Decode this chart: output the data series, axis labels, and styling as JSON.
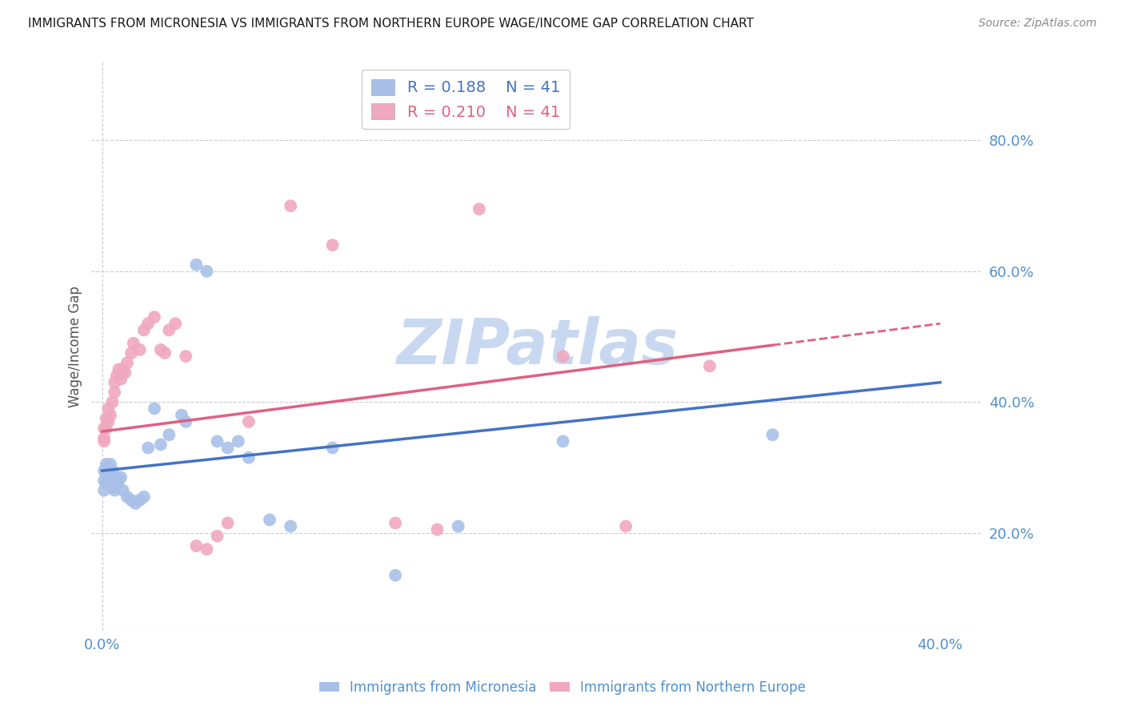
{
  "title": "IMMIGRANTS FROM MICRONESIA VS IMMIGRANTS FROM NORTHERN EUROPE WAGE/INCOME GAP CORRELATION CHART",
  "source": "Source: ZipAtlas.com",
  "ylabel": "Wage/Income Gap",
  "xlim": [
    -0.005,
    0.42
  ],
  "ylim": [
    0.05,
    0.92
  ],
  "yticks": [
    0.2,
    0.4,
    0.6,
    0.8
  ],
  "xticks": [
    0.0,
    0.1,
    0.2,
    0.3,
    0.4
  ],
  "xtick_labels": [
    "0.0%",
    "",
    "",
    "",
    "40.0%"
  ],
  "ytick_labels": [
    "20.0%",
    "40.0%",
    "60.0%",
    "80.0%"
  ],
  "series1_color": "#a8c0e8",
  "series2_color": "#f0a8c0",
  "line1_color": "#4472c4",
  "line2_color": "#e06080",
  "R1": 0.188,
  "N1": 41,
  "R2": 0.21,
  "N2": 41,
  "watermark": "ZIPatlas",
  "watermark_color": "#c8d8f0",
  "background_color": "#ffffff",
  "grid_color": "#cccccc",
  "title_color": "#1a1a1a",
  "axis_label_color": "#5090d0",
  "legend_R1_color": "#4472c4",
  "legend_R2_color": "#e06080",
  "micronesia_x": [
    0.001,
    0.001,
    0.001,
    0.002,
    0.002,
    0.002,
    0.003,
    0.003,
    0.004,
    0.004,
    0.005,
    0.005,
    0.006,
    0.007,
    0.008,
    0.009,
    0.01,
    0.012,
    0.014,
    0.016,
    0.018,
    0.02,
    0.022,
    0.025,
    0.028,
    0.032,
    0.038,
    0.04,
    0.045,
    0.05,
    0.055,
    0.06,
    0.065,
    0.07,
    0.08,
    0.09,
    0.11,
    0.14,
    0.17,
    0.22,
    0.32
  ],
  "micronesia_y": [
    0.295,
    0.28,
    0.265,
    0.305,
    0.29,
    0.275,
    0.285,
    0.275,
    0.305,
    0.29,
    0.295,
    0.27,
    0.265,
    0.275,
    0.28,
    0.285,
    0.265,
    0.255,
    0.25,
    0.245,
    0.25,
    0.255,
    0.33,
    0.39,
    0.335,
    0.35,
    0.38,
    0.37,
    0.61,
    0.6,
    0.34,
    0.33,
    0.34,
    0.315,
    0.22,
    0.21,
    0.33,
    0.135,
    0.21,
    0.34,
    0.35
  ],
  "northern_x": [
    0.001,
    0.001,
    0.001,
    0.002,
    0.002,
    0.003,
    0.003,
    0.004,
    0.005,
    0.006,
    0.006,
    0.007,
    0.008,
    0.009,
    0.01,
    0.011,
    0.012,
    0.014,
    0.015,
    0.018,
    0.02,
    0.022,
    0.025,
    0.028,
    0.03,
    0.032,
    0.035,
    0.04,
    0.045,
    0.05,
    0.055,
    0.06,
    0.07,
    0.09,
    0.11,
    0.14,
    0.16,
    0.18,
    0.22,
    0.25,
    0.29
  ],
  "northern_y": [
    0.34,
    0.36,
    0.345,
    0.375,
    0.36,
    0.39,
    0.37,
    0.38,
    0.4,
    0.415,
    0.43,
    0.44,
    0.45,
    0.435,
    0.45,
    0.445,
    0.46,
    0.475,
    0.49,
    0.48,
    0.51,
    0.52,
    0.53,
    0.48,
    0.475,
    0.51,
    0.52,
    0.47,
    0.18,
    0.175,
    0.195,
    0.215,
    0.37,
    0.7,
    0.64,
    0.215,
    0.205,
    0.695,
    0.47,
    0.21,
    0.455
  ],
  "line1_x0": 0.0,
  "line1_y0": 0.295,
  "line1_x1": 0.4,
  "line1_y1": 0.43,
  "line2_x0": 0.0,
  "line2_y0": 0.355,
  "line2_x1": 0.4,
  "line2_y1": 0.52,
  "line2_solid_end": 0.32
}
